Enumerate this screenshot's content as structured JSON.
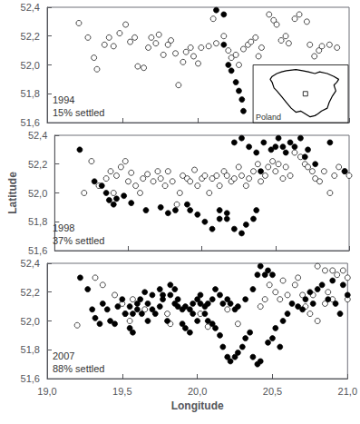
{
  "chart_data": [
    {
      "type": "scatter",
      "annotation": "1994\n15% settled",
      "xlim": [
        19.0,
        21.0
      ],
      "ylim": [
        51.6,
        52.4
      ],
      "xticks": [
        {
          "value": 19.0,
          "label": "19,0"
        },
        {
          "value": 19.5,
          "label": "19,5"
        },
        {
          "value": 20.0,
          "label": "20,0"
        },
        {
          "value": 20.5,
          "label": "20,5"
        },
        {
          "value": 21.0,
          "label": "21,0"
        }
      ],
      "yticks": [
        {
          "value": 51.6,
          "label": "51,6"
        },
        {
          "value": 51.8,
          "label": "51,8"
        },
        {
          "value": 52.0,
          "label": "52,0"
        },
        {
          "value": 52.2,
          "label": "52,2"
        },
        {
          "value": 52.4,
          "label": "52,4"
        }
      ],
      "grid": false,
      "tick_labels": "y",
      "series": [
        {
          "color": "white",
          "marker": "circle",
          "x": [
            19.21,
            19.27,
            19.31,
            19.33,
            19.38,
            19.41,
            19.44,
            19.48,
            19.52,
            19.55,
            19.58,
            19.6,
            19.64,
            19.67,
            19.69,
            19.72,
            19.74,
            19.77,
            19.8,
            19.82,
            19.85,
            19.87,
            19.9,
            19.92,
            19.95,
            19.97,
            20.0,
            20.02,
            20.07,
            20.1,
            20.12,
            20.17,
            20.2,
            20.22,
            20.25,
            20.27,
            20.3,
            20.33,
            20.35,
            20.38,
            20.4,
            20.42,
            20.47,
            20.5,
            20.52,
            20.55,
            20.58,
            20.6,
            20.64,
            20.67,
            20.72,
            20.74,
            20.77,
            20.8,
            20.82,
            20.87,
            20.92
          ],
          "values": [
            52.29,
            52.19,
            52.05,
            51.97,
            52.14,
            52.19,
            52.13,
            52.22,
            52.28,
            52.16,
            52.19,
            51.99,
            51.98,
            52.12,
            52.19,
            52.15,
            52.21,
            52.07,
            52.14,
            52.17,
            52.08,
            51.86,
            52.02,
            52.09,
            52.12,
            52.06,
            52.01,
            52.12,
            52.13,
            52.32,
            52.15,
            52.2,
            52.1,
            52.05,
            52.07,
            52.0,
            52.11,
            52.14,
            52.16,
            52.19,
            52.06,
            52.12,
            52.35,
            52.31,
            52.28,
            52.17,
            52.2,
            52.15,
            52.32,
            52.35,
            52.3,
            52.14,
            52.06,
            52.1,
            52.13,
            52.14,
            52.12
          ]
        },
        {
          "color": "black",
          "marker": "circle",
          "x": [
            20.12,
            20.17,
            20.2,
            20.22,
            20.25,
            20.27,
            20.29,
            20.3,
            20.17
          ],
          "values": [
            52.38,
            52.35,
            52.0,
            51.96,
            51.88,
            51.82,
            51.76,
            51.68,
            52.14
          ]
        }
      ]
    },
    {
      "type": "scatter",
      "annotation": "1998\n37% settled",
      "ylabel": "Latitude",
      "xlim": [
        19.0,
        21.0
      ],
      "ylim": [
        51.6,
        52.4
      ],
      "xticks": [
        {
          "value": 19.0,
          "label": "19,0"
        },
        {
          "value": 19.5,
          "label": "19,5"
        },
        {
          "value": 20.0,
          "label": "20,0"
        },
        {
          "value": 20.5,
          "label": "20,5"
        },
        {
          "value": 21.0,
          "label": "21,0"
        }
      ],
      "yticks": [
        {
          "value": 51.6,
          "label": "51,6"
        },
        {
          "value": 51.8,
          "label": "51,8"
        },
        {
          "value": 52.0,
          "label": "52,0"
        },
        {
          "value": 52.2,
          "label": "52,2"
        },
        {
          "value": 52.4,
          "label": "52,4"
        }
      ],
      "grid": false,
      "tick_labels": "y",
      "series": [
        {
          "color": "white",
          "marker": "circle",
          "x": [
            19.2,
            19.25,
            19.3,
            19.35,
            19.38,
            19.4,
            19.42,
            19.45,
            19.48,
            19.5,
            19.52,
            19.55,
            19.58,
            19.6,
            19.63,
            19.67,
            19.7,
            19.72,
            19.75,
            19.77,
            19.8,
            19.83,
            19.85,
            19.87,
            19.9,
            19.92,
            19.95,
            19.97,
            20.0,
            20.02,
            20.05,
            20.07,
            20.1,
            20.12,
            20.15,
            20.17,
            20.2,
            20.22,
            20.25,
            20.27,
            20.3,
            20.32,
            20.35,
            20.38,
            20.4,
            20.43,
            20.45,
            20.48,
            20.5,
            20.52,
            20.55,
            20.57,
            20.6,
            20.63,
            20.67,
            20.7,
            20.72,
            20.75,
            20.77,
            20.8,
            20.83,
            20.87,
            20.9,
            20.93,
            20.97,
            21.0
          ],
          "values": [
            52.0,
            52.22,
            52.05,
            52.1,
            52.15,
            52.0,
            52.12,
            52.18,
            52.22,
            52.08,
            52.14,
            52.05,
            52.0,
            52.1,
            52.13,
            52.08,
            52.15,
            52.1,
            52.05,
            52.15,
            52.08,
            51.92,
            52.0,
            52.12,
            52.1,
            52.08,
            52.16,
            52.05,
            52.1,
            52.12,
            52.0,
            52.1,
            52.12,
            52.05,
            52.15,
            52.12,
            52.08,
            52.1,
            52.18,
            52.12,
            52.05,
            52.1,
            52.15,
            52.2,
            52.08,
            52.12,
            52.18,
            52.22,
            52.15,
            52.2,
            52.1,
            52.18,
            52.12,
            52.28,
            52.25,
            52.2,
            52.18,
            52.15,
            52.1,
            52.08,
            52.15,
            52.0,
            52.12,
            52.18,
            52.15,
            52.12
          ]
        },
        {
          "color": "black",
          "marker": "circle",
          "x": [
            19.17,
            19.27,
            19.32,
            19.35,
            19.37,
            19.4,
            19.42,
            19.47,
            19.52,
            19.62,
            19.72,
            19.77,
            19.82,
            19.9,
            19.92,
            19.97,
            20.02,
            20.07,
            20.12,
            20.17,
            20.22,
            20.27,
            20.32,
            20.37,
            20.4,
            20.42,
            20.47,
            20.5,
            20.52,
            20.55,
            20.57,
            20.6,
            20.63,
            20.67,
            20.7,
            20.72,
            20.77,
            20.87,
            20.97,
            20.12,
            20.17,
            20.22,
            20.27,
            20.3,
            20.35,
            20.37
          ],
          "values": [
            52.3,
            52.08,
            52.05,
            52.0,
            51.95,
            51.92,
            51.96,
            51.98,
            51.93,
            51.88,
            51.9,
            51.86,
            51.88,
            51.92,
            51.88,
            51.85,
            51.8,
            51.75,
            51.82,
            51.86,
            52.35,
            52.38,
            52.32,
            52.28,
            52.15,
            52.35,
            52.3,
            52.32,
            52.38,
            52.32,
            52.28,
            52.35,
            52.32,
            52.38,
            52.25,
            52.3,
            52.2,
            52.35,
            52.15,
            51.88,
            51.82,
            51.75,
            51.72,
            51.78,
            51.82,
            51.88
          ]
        }
      ]
    },
    {
      "type": "scatter",
      "annotation": "2007\n88% settled",
      "xlabel": "Longitude",
      "xlim": [
        19.0,
        21.0
      ],
      "ylim": [
        51.6,
        52.4
      ],
      "xticks": [
        {
          "value": 19.0,
          "label": "19,0"
        },
        {
          "value": 19.5,
          "label": "19,5"
        },
        {
          "value": 20.0,
          "label": "20,0"
        },
        {
          "value": 20.5,
          "label": "20,5"
        },
        {
          "value": 21.0,
          "label": "21,0"
        }
      ],
      "yticks": [
        {
          "value": 51.6,
          "label": "51,6"
        },
        {
          "value": 51.8,
          "label": "51,8"
        },
        {
          "value": 52.0,
          "label": "52,0"
        },
        {
          "value": 52.2,
          "label": "52,2"
        },
        {
          "value": 52.4,
          "label": "52,4"
        }
      ],
      "grid": false,
      "series": [
        {
          "color": "white",
          "marker": "circle",
          "x": [
            19.2,
            19.32,
            19.37,
            19.45,
            19.5,
            19.52,
            19.55,
            19.57,
            19.65,
            19.8,
            19.82,
            20.02,
            20.07,
            20.2,
            20.27,
            20.42,
            20.45,
            20.48,
            20.52,
            20.55,
            20.57,
            20.6,
            20.65,
            20.67,
            20.7,
            20.72,
            20.75,
            20.77,
            20.8,
            20.85,
            20.87,
            20.9,
            20.93,
            20.97,
            21.0,
            20.8,
            20.85,
            20.9,
            21.0
          ],
          "values": [
            51.97,
            52.3,
            52.25,
            52.18,
            52.12,
            52.05,
            52.0,
            52.15,
            52.08,
            52.05,
            51.98,
            52.05,
            51.96,
            52.08,
            51.98,
            52.1,
            52.15,
            52.25,
            52.2,
            52.15,
            52.28,
            52.18,
            52.25,
            52.3,
            52.18,
            52.1,
            52.05,
            52.18,
            52.0,
            52.12,
            52.2,
            52.35,
            52.32,
            52.35,
            52.3,
            52.38,
            52.35,
            52.15,
            52.15
          ]
        },
        {
          "color": "black",
          "marker": "circle",
          "x": [
            19.22,
            19.27,
            19.3,
            19.32,
            19.35,
            19.37,
            19.4,
            19.42,
            19.45,
            19.47,
            19.5,
            19.52,
            19.55,
            19.57,
            19.6,
            19.63,
            19.67,
            19.7,
            19.72,
            19.75,
            19.77,
            19.8,
            19.82,
            19.85,
            19.87,
            19.9,
            19.92,
            19.95,
            19.97,
            20.0,
            20.02,
            20.05,
            20.07,
            20.1,
            20.12,
            20.15,
            20.17,
            20.2,
            20.22,
            20.25,
            20.27,
            20.3,
            20.32,
            20.35,
            20.37,
            20.4,
            20.42,
            20.47,
            20.5,
            20.52,
            20.55,
            20.57,
            20.6,
            20.63,
            20.67,
            20.7,
            20.72,
            20.75,
            20.77,
            20.8,
            20.83,
            20.87,
            20.9,
            20.92,
            20.95,
            20.97,
            21.0,
            20.4,
            20.42,
            20.45,
            20.47,
            20.5,
            20.37,
            20.32,
            20.27,
            20.25,
            20.22,
            20.2,
            20.17,
            20.15,
            20.12,
            20.1,
            20.07,
            20.05,
            20.02,
            20.0,
            19.97,
            19.95,
            19.92,
            19.9,
            19.87,
            19.85,
            19.82,
            19.77,
            19.75,
            19.7,
            19.67,
            19.65,
            19.62,
            19.6,
            19.57,
            19.55
          ],
          "values": [
            52.3,
            52.22,
            52.08,
            52.02,
            51.98,
            52.12,
            52.08,
            52.0,
            51.98,
            52.1,
            52.15,
            52.05,
            51.95,
            51.92,
            52.12,
            52.05,
            52.0,
            52.08,
            52.05,
            52.1,
            52.15,
            52.0,
            52.18,
            52.12,
            52.1,
            51.98,
            51.95,
            51.92,
            52.05,
            52.0,
            52.12,
            52.05,
            52.0,
            51.98,
            51.95,
            51.9,
            51.82,
            51.75,
            51.72,
            51.75,
            51.78,
            51.82,
            51.88,
            51.92,
            51.75,
            51.7,
            51.72,
            51.85,
            51.88,
            51.95,
            51.82,
            52.0,
            52.05,
            52.12,
            52.1,
            52.08,
            52.15,
            52.2,
            52.12,
            52.22,
            52.25,
            52.15,
            52.28,
            52.12,
            52.05,
            52.25,
            52.18,
            52.32,
            52.38,
            52.32,
            52.35,
            52.32,
            52.22,
            52.15,
            52.1,
            52.08,
            52.12,
            52.15,
            52.12,
            52.18,
            52.22,
            52.15,
            52.12,
            52.1,
            52.18,
            52.15,
            52.12,
            52.08,
            52.1,
            52.08,
            52.15,
            52.22,
            52.25,
            52.18,
            52.22,
            52.18,
            52.12,
            52.2,
            52.15,
            52.08,
            52.05,
            52.1
          ]
        }
      ]
    },
    {
      "type": "line",
      "title": "Poland",
      "xlim": [
        0,
        10
      ],
      "ylim": [
        0,
        10
      ],
      "tick_labels": false,
      "grid": false,
      "series": [
        {
          "type": "line",
          "color": "black",
          "x": [
            3.5,
            4.5,
            5.2,
            5.8,
            6.5,
            7.0,
            7.8,
            8.5,
            9.0,
            8.8,
            8.5,
            8.7,
            8.3,
            8.0,
            7.8,
            7.2,
            6.8,
            6.5,
            6.0,
            5.5,
            5.0,
            4.5,
            4.0,
            3.5,
            3.0,
            2.5,
            2.2,
            2.0,
            1.8,
            2.0,
            2.5,
            3.0,
            3.5
          ],
          "values": [
            9.0,
            9.2,
            9.0,
            8.8,
            8.5,
            8.8,
            8.5,
            8.0,
            7.5,
            7.0,
            6.5,
            5.5,
            4.5,
            3.5,
            2.5,
            2.0,
            1.5,
            1.2,
            1.0,
            1.5,
            2.0,
            1.8,
            2.5,
            3.5,
            4.5,
            5.5,
            6.0,
            7.0,
            7.5,
            8.0,
            8.5,
            8.8,
            9.0
          ]
        },
        {
          "type": "scatter",
          "marker": "square",
          "color": "white",
          "x": [
            5.5
          ],
          "values": [
            5.0
          ]
        }
      ]
    }
  ]
}
